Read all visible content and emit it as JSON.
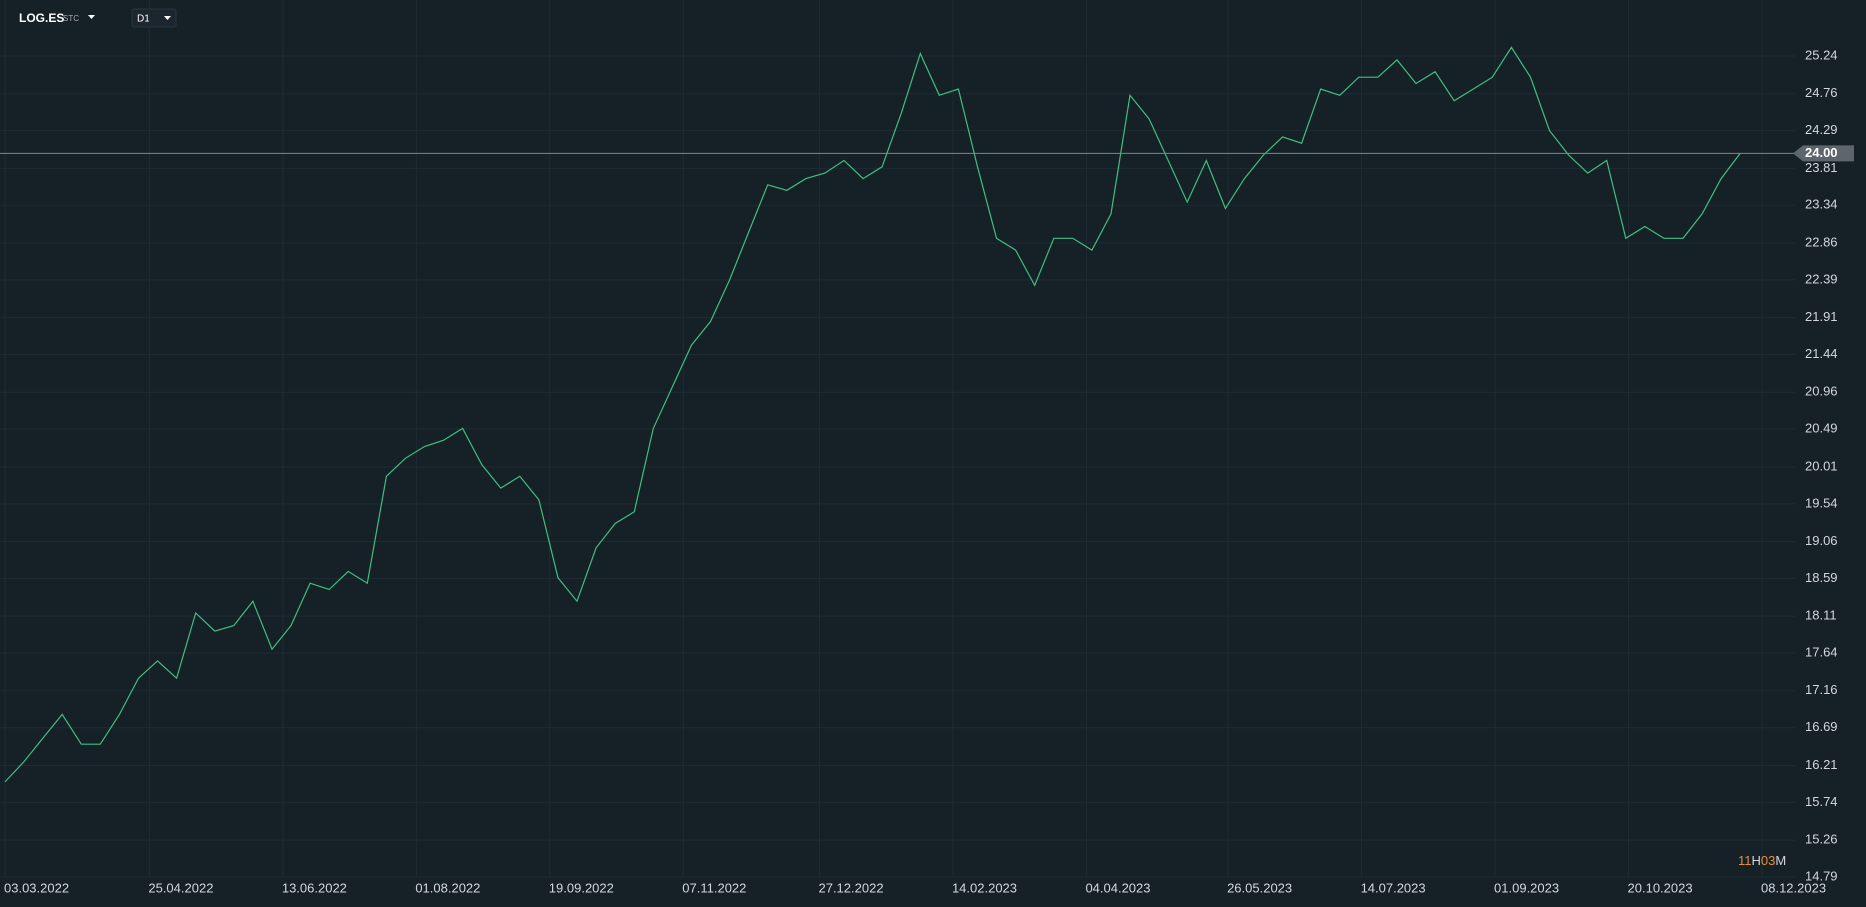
{
  "header": {
    "symbol": "LOG.ES",
    "market": "STC",
    "interval": "D1"
  },
  "countdown": {
    "hours": "11",
    "hours_unit": "H",
    "minutes": "03",
    "minutes_unit": "M"
  },
  "chart_data": {
    "type": "line",
    "color": "#3fbf82",
    "grid": true,
    "current": {
      "value": 24.0,
      "label": "24.00"
    },
    "x": [
      "2022-03-03",
      "2022-03-10",
      "2022-03-17",
      "2022-03-24",
      "2022-03-31",
      "2022-04-07",
      "2022-04-14",
      "2022-04-21",
      "2022-04-28",
      "2022-05-05",
      "2022-05-12",
      "2022-05-19",
      "2022-05-26",
      "2022-06-02",
      "2022-06-09",
      "2022-06-16",
      "2022-06-23",
      "2022-06-30",
      "2022-07-07",
      "2022-07-14",
      "2022-07-21",
      "2022-07-28",
      "2022-08-04",
      "2022-08-11",
      "2022-08-18",
      "2022-08-25",
      "2022-09-01",
      "2022-09-08",
      "2022-09-15",
      "2022-09-22",
      "2022-09-29",
      "2022-10-06",
      "2022-10-13",
      "2022-10-20",
      "2022-10-27",
      "2022-11-03",
      "2022-11-10",
      "2022-11-17",
      "2022-11-24",
      "2022-12-01",
      "2022-12-08",
      "2022-12-15",
      "2022-12-22",
      "2022-12-29",
      "2023-01-05",
      "2023-01-12",
      "2023-01-19",
      "2023-01-26",
      "2023-02-02",
      "2023-02-09",
      "2023-02-16",
      "2023-02-23",
      "2023-03-02",
      "2023-03-09",
      "2023-03-16",
      "2023-03-23",
      "2023-03-30",
      "2023-04-06",
      "2023-04-13",
      "2023-04-20",
      "2023-04-27",
      "2023-05-04",
      "2023-05-11",
      "2023-05-18",
      "2023-05-25",
      "2023-06-01",
      "2023-06-08",
      "2023-06-15",
      "2023-06-22",
      "2023-06-29",
      "2023-07-06",
      "2023-07-13",
      "2023-07-20",
      "2023-07-27",
      "2023-08-03",
      "2023-08-10",
      "2023-08-17",
      "2023-08-24",
      "2023-08-31",
      "2023-09-07",
      "2023-09-14",
      "2023-09-21",
      "2023-09-28",
      "2023-10-05",
      "2023-10-12",
      "2023-10-19",
      "2023-10-26",
      "2023-11-02",
      "2023-11-09",
      "2023-11-16",
      "2023-11-23",
      "2023-11-30"
    ],
    "series": [
      {
        "name": "LOG.ES",
        "color": "#3fbf82",
        "values": [
          16.0,
          16.26,
          16.56,
          16.86,
          16.48,
          16.48,
          16.86,
          17.32,
          17.54,
          17.32,
          18.15,
          17.92,
          17.99,
          18.3,
          17.69,
          17.99,
          18.53,
          18.45,
          18.68,
          18.53,
          19.89,
          20.12,
          20.27,
          20.35,
          20.5,
          20.04,
          19.74,
          19.89,
          19.59,
          18.6,
          18.3,
          18.98,
          19.29,
          19.44,
          20.5,
          21.03,
          21.56,
          21.86,
          22.39,
          23.0,
          23.6,
          23.53,
          23.68,
          23.75,
          23.91,
          23.68,
          23.83,
          24.51,
          25.27,
          24.74,
          24.82,
          23.83,
          22.92,
          22.77,
          22.32,
          22.92,
          22.92,
          22.77,
          23.23,
          24.74,
          24.44,
          23.91,
          23.38,
          23.91,
          23.3,
          23.68,
          23.98,
          24.21,
          24.13,
          24.82,
          24.74,
          24.97,
          24.97,
          25.19,
          24.89,
          25.04,
          24.67,
          24.82,
          24.97,
          25.35,
          24.97,
          24.29,
          23.98,
          23.75,
          23.91,
          22.92,
          23.07,
          22.92,
          22.92,
          23.23,
          23.68,
          24.0
        ]
      }
    ],
    "xlim": [
      "2022-03-03",
      "2023-12-08"
    ],
    "xticks": [
      {
        "value": "2022-03-03",
        "label": "03.03.2022"
      },
      {
        "value": "2022-04-25",
        "label": "25.04.2022"
      },
      {
        "value": "2022-06-13",
        "label": "13.06.2022"
      },
      {
        "value": "2022-08-01",
        "label": "01.08.2022"
      },
      {
        "value": "2022-09-19",
        "label": "19.09.2022"
      },
      {
        "value": "2022-11-07",
        "label": "07.11.2022"
      },
      {
        "value": "2022-12-27",
        "label": "27.12.2022"
      },
      {
        "value": "2023-02-14",
        "label": "14.02.2023"
      },
      {
        "value": "2023-04-04",
        "label": "04.04.2023"
      },
      {
        "value": "2023-05-26",
        "label": "26.05.2023"
      },
      {
        "value": "2023-07-14",
        "label": "14.07.2023"
      },
      {
        "value": "2023-09-01",
        "label": "01.09.2023"
      },
      {
        "value": "2023-10-20",
        "label": "20.10.2023"
      },
      {
        "value": "2023-12-08",
        "label": "08.12.2023"
      }
    ],
    "ylim": [
      14.79,
      25.24
    ],
    "yticks": [
      {
        "value": 25.24,
        "label": "25.24"
      },
      {
        "value": 24.76,
        "label": "24.76"
      },
      {
        "value": 24.29,
        "label": "24.29"
      },
      {
        "value": 23.81,
        "label": "23.81"
      },
      {
        "value": 23.34,
        "label": "23.34"
      },
      {
        "value": 22.86,
        "label": "22.86"
      },
      {
        "value": 22.39,
        "label": "22.39"
      },
      {
        "value": 21.91,
        "label": "21.91"
      },
      {
        "value": 21.44,
        "label": "21.44"
      },
      {
        "value": 20.96,
        "label": "20.96"
      },
      {
        "value": 20.49,
        "label": "20.49"
      },
      {
        "value": 20.01,
        "label": "20.01"
      },
      {
        "value": 19.54,
        "label": "19.54"
      },
      {
        "value": 19.06,
        "label": "19.06"
      },
      {
        "value": 18.59,
        "label": "18.59"
      },
      {
        "value": 18.11,
        "label": "18.11"
      },
      {
        "value": 17.64,
        "label": "17.64"
      },
      {
        "value": 17.16,
        "label": "17.16"
      },
      {
        "value": 16.69,
        "label": "16.69"
      },
      {
        "value": 16.21,
        "label": "16.21"
      },
      {
        "value": 15.74,
        "label": "15.74"
      },
      {
        "value": 15.26,
        "label": "15.26"
      },
      {
        "value": 14.79,
        "label": "14.79"
      }
    ]
  }
}
